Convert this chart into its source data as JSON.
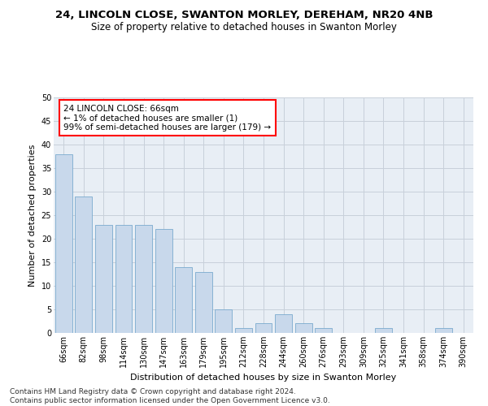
{
  "title_line1": "24, LINCOLN CLOSE, SWANTON MORLEY, DEREHAM, NR20 4NB",
  "title_line2": "Size of property relative to detached houses in Swanton Morley",
  "xlabel": "Distribution of detached houses by size in Swanton Morley",
  "ylabel": "Number of detached properties",
  "bar_color": "#c8d8eb",
  "bar_edge_color": "#7aaace",
  "categories": [
    "66sqm",
    "82sqm",
    "98sqm",
    "114sqm",
    "130sqm",
    "147sqm",
    "163sqm",
    "179sqm",
    "195sqm",
    "212sqm",
    "228sqm",
    "244sqm",
    "260sqm",
    "276sqm",
    "293sqm",
    "309sqm",
    "325sqm",
    "341sqm",
    "358sqm",
    "374sqm",
    "390sqm"
  ],
  "values": [
    38,
    29,
    23,
    23,
    23,
    22,
    14,
    13,
    5,
    1,
    2,
    4,
    2,
    1,
    0,
    0,
    1,
    0,
    0,
    1,
    0
  ],
  "ylim": [
    0,
    50
  ],
  "yticks": [
    0,
    5,
    10,
    15,
    20,
    25,
    30,
    35,
    40,
    45,
    50
  ],
  "annotation_box_text": "24 LINCOLN CLOSE: 66sqm\n← 1% of detached houses are smaller (1)\n99% of semi-detached houses are larger (179) →",
  "grid_color": "#c8d0da",
  "background_color": "#e8eef5",
  "footer_line1": "Contains HM Land Registry data © Crown copyright and database right 2024.",
  "footer_line2": "Contains public sector information licensed under the Open Government Licence v3.0.",
  "title_fontsize": 9.5,
  "subtitle_fontsize": 8.5,
  "axis_label_fontsize": 8.0,
  "tick_fontsize": 7.0,
  "annotation_fontsize": 7.5,
  "footer_fontsize": 6.5
}
